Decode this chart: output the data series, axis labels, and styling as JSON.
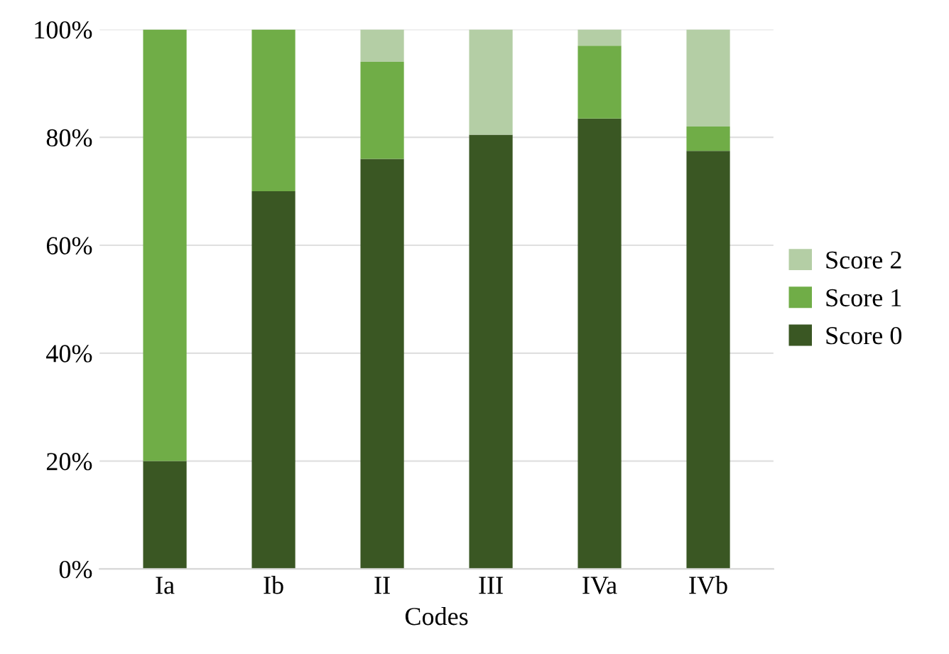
{
  "chart_data": {
    "type": "bar",
    "stacked": true,
    "xlabel": "Codes",
    "categories": [
      "Ia",
      "Ib",
      "II",
      "III",
      "IVa",
      "IVb"
    ],
    "series": [
      {
        "name": "Score 0",
        "color": "#3a5723",
        "values": [
          20,
          70,
          76,
          80.5,
          83.5,
          77.5
        ]
      },
      {
        "name": "Score 1",
        "color": "#70ad47",
        "values": [
          80,
          30,
          18,
          0,
          13.5,
          4.5
        ]
      },
      {
        "name": "Score 2",
        "color": "#b4cea5",
        "values": [
          0,
          0,
          6,
          19.5,
          3,
          18
        ]
      }
    ],
    "ylim": [
      0,
      100
    ],
    "yticks": [
      {
        "value": 0,
        "label": "0%"
      },
      {
        "value": 20,
        "label": "20%"
      },
      {
        "value": 40,
        "label": "40%"
      },
      {
        "value": 60,
        "label": "60%"
      },
      {
        "value": 80,
        "label": "80%"
      },
      {
        "value": 100,
        "label": "100%"
      }
    ],
    "grid": "y",
    "legend": "right"
  }
}
